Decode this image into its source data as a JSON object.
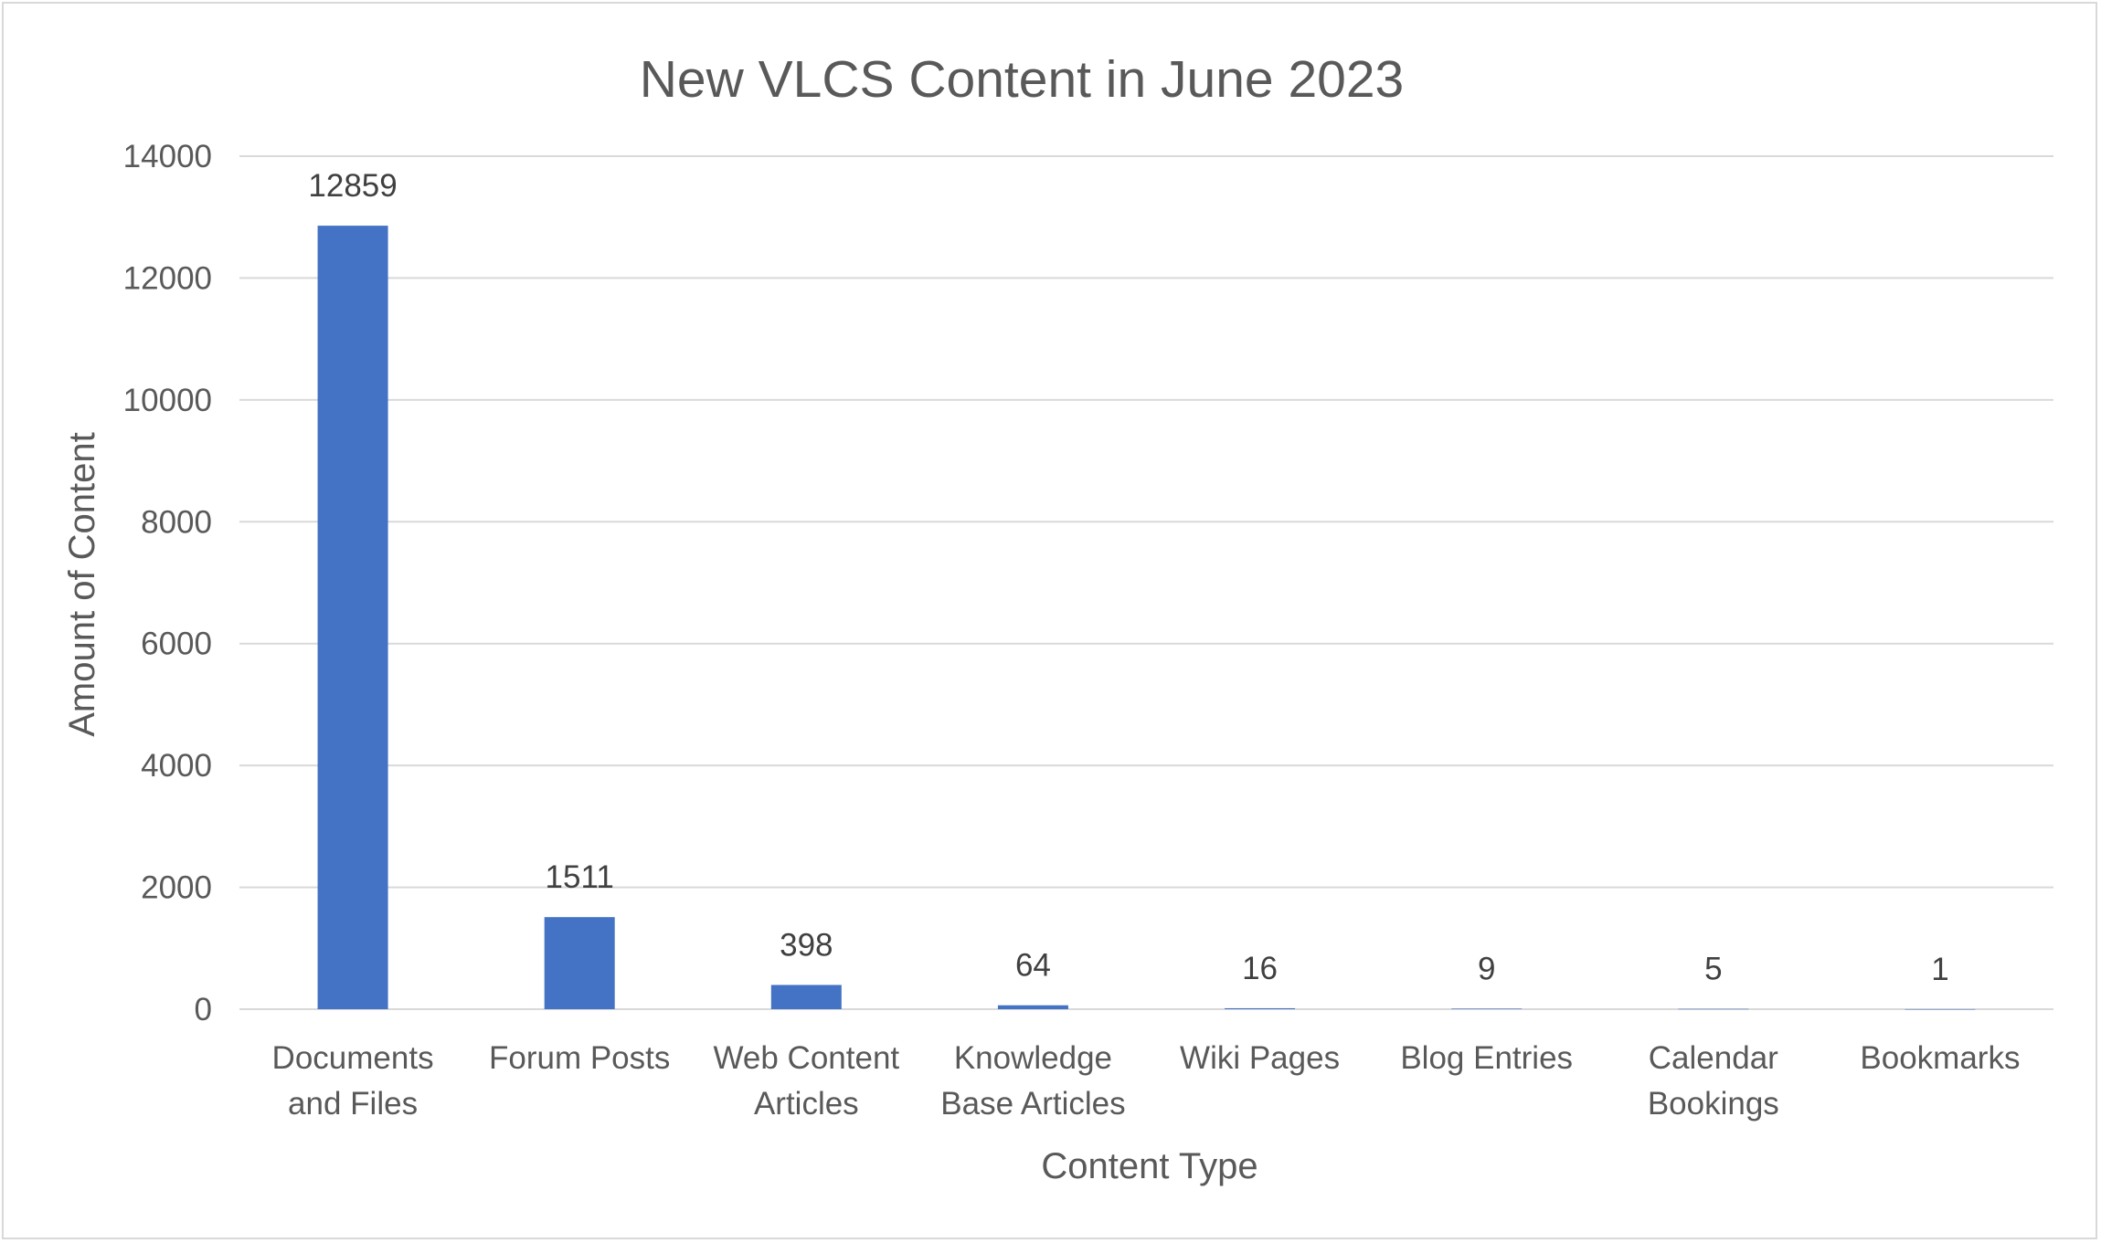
{
  "chart_data": {
    "type": "bar",
    "title": "New VLCS Content in June 2023",
    "xlabel": "Content Type",
    "ylabel": "Amount of Content",
    "categories": [
      [
        "Documents",
        "and Files"
      ],
      [
        "Forum Posts"
      ],
      [
        "Web Content",
        "Articles"
      ],
      [
        "Knowledge",
        "Base Articles"
      ],
      [
        "Wiki Pages"
      ],
      [
        "Blog Entries"
      ],
      [
        "Calendar",
        "Bookings"
      ],
      [
        "Bookmarks"
      ]
    ],
    "values": [
      12859,
      1511,
      398,
      64,
      16,
      9,
      5,
      1
    ],
    "ylim": [
      0,
      14000
    ],
    "yticks": [
      0,
      2000,
      4000,
      6000,
      8000,
      10000,
      12000,
      14000
    ],
    "grid": true,
    "legend": "none",
    "bar_color": "#4472c4"
  }
}
